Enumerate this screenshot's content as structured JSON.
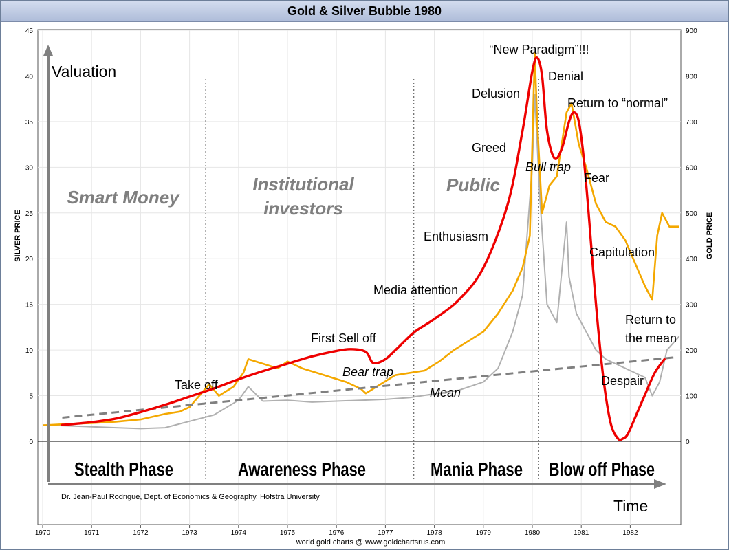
{
  "chart_data": {
    "type": "line",
    "title": "Gold & Silver Bubble 1980",
    "source": "world gold charts @ www.goldchartsrus.com",
    "credit": "Dr. Jean-Paul Rodrigue, Dept. of Economics & Geography, Hofstra University",
    "y_left_label": "SILVER PRICE",
    "y_right_label": "GOLD PRICE",
    "y_left_ticks": [
      "0",
      "5",
      "10",
      "15",
      "20",
      "25",
      "30",
      "35",
      "40",
      "45"
    ],
    "y_right_ticks": [
      "0",
      "100",
      "200",
      "300",
      "400",
      "500",
      "600",
      "700",
      "800",
      "900"
    ],
    "x_ticks": [
      "1970",
      "1971",
      "1972",
      "1973",
      "1974",
      "1975",
      "1976",
      "1977",
      "1978",
      "1979",
      "1980",
      "1981",
      "1982"
    ],
    "y_left_range": [
      0,
      45
    ],
    "y_right_range": [
      0,
      900
    ],
    "x_range": [
      1970,
      1983
    ],
    "axis_valuation": "Valuation",
    "axis_time": "Time",
    "phases": [
      "Stealth Phase",
      "Awareness Phase",
      "Mania Phase",
      "Blow off Phase"
    ],
    "investors": [
      "Smart Money",
      "Institutional investors",
      "Public"
    ],
    "annotations": [
      "“New Paradigm”!!!",
      "Denial",
      "Delusion",
      "Return to “normal”",
      "Greed",
      "Bull trap",
      "Fear",
      "Enthusiasm",
      "Capitulation",
      "Media attention",
      "First Sell off",
      "Bear trap",
      "Take off",
      "Mean",
      "Return to",
      "the mean",
      "Despair"
    ],
    "gold_series": {
      "name": "Gold",
      "color": "#f4a800",
      "x": [
        1970.0,
        1970.5,
        1971.0,
        1971.5,
        1972.0,
        1972.5,
        1972.8,
        1973.0,
        1973.2,
        1973.4,
        1973.6,
        1973.9,
        1974.1,
        1974.2,
        1974.5,
        1974.8,
        1975.0,
        1975.3,
        1975.6,
        1975.9,
        1976.2,
        1976.5,
        1976.6,
        1976.9,
        1977.2,
        1977.5,
        1977.8,
        1978.1,
        1978.4,
        1978.7,
        1979.0,
        1979.3,
        1979.6,
        1979.8,
        1979.95,
        1980.05,
        1980.1,
        1980.2,
        1980.35,
        1980.5,
        1980.7,
        1980.8,
        1980.95,
        1981.1,
        1981.3,
        1981.5,
        1981.7,
        1981.9,
        1982.1,
        1982.3,
        1982.45,
        1982.55,
        1982.65,
        1982.8,
        1983.0
      ],
      "y": [
        35,
        38,
        40,
        43,
        48,
        60,
        65,
        75,
        100,
        125,
        100,
        120,
        150,
        180,
        170,
        160,
        175,
        160,
        150,
        140,
        130,
        115,
        105,
        125,
        145,
        150,
        155,
        175,
        200,
        220,
        240,
        280,
        330,
        380,
        450,
        850,
        700,
        500,
        560,
        580,
        720,
        740,
        650,
        600,
        520,
        480,
        470,
        440,
        390,
        340,
        310,
        450,
        500,
        470,
        470
      ]
    },
    "silver_series": {
      "name": "Silver",
      "color": "#b0b0b0",
      "x": [
        1970.0,
        1970.5,
        1971.0,
        1971.5,
        1972.0,
        1972.5,
        1973.0,
        1973.5,
        1974.0,
        1974.2,
        1974.5,
        1975.0,
        1975.5,
        1976.0,
        1976.5,
        1977.0,
        1977.5,
        1978.0,
        1978.5,
        1979.0,
        1979.3,
        1979.6,
        1979.8,
        1980.0,
        1980.05,
        1980.15,
        1980.3,
        1980.5,
        1980.7,
        1980.75,
        1980.9,
        1981.1,
        1981.3,
        1981.5,
        1981.7,
        1981.9,
        1982.1,
        1982.3,
        1982.45,
        1982.6,
        1982.75,
        1983.0
      ],
      "y": [
        1.8,
        1.7,
        1.6,
        1.5,
        1.4,
        1.5,
        2.2,
        2.9,
        4.5,
        6.0,
        4.4,
        4.5,
        4.3,
        4.4,
        4.5,
        4.6,
        4.8,
        5.2,
        5.6,
        6.5,
        8.0,
        12.0,
        16.0,
        30.0,
        38.0,
        27.0,
        15.0,
        13.0,
        24.0,
        18.0,
        14.0,
        12.0,
        10.0,
        9.0,
        8.5,
        8.0,
        7.5,
        7.0,
        5.0,
        6.5,
        10.0,
        11.5
      ]
    },
    "bubble_curve": {
      "x": [
        1970.4,
        1971.0,
        1971.5,
        1972.0,
        1972.5,
        1973.0,
        1973.5,
        1974.0,
        1974.5,
        1975.0,
        1975.5,
        1976.0,
        1976.3,
        1976.6,
        1976.75,
        1977.0,
        1977.3,
        1977.6,
        1978.0,
        1978.5,
        1979.0,
        1979.5,
        1979.8,
        1980.0,
        1980.1,
        1980.2,
        1980.3,
        1980.45,
        1980.6,
        1980.75,
        1980.85,
        1980.95,
        1981.05,
        1981.15,
        1981.3,
        1981.45,
        1981.6,
        1981.75,
        1981.85,
        1981.95,
        1982.1,
        1982.3,
        1982.5,
        1982.7
      ],
      "y": [
        1.8,
        2.1,
        2.5,
        3.2,
        4.0,
        4.9,
        5.8,
        6.8,
        7.7,
        8.5,
        9.3,
        9.9,
        10.1,
        9.8,
        8.6,
        9.0,
        10.5,
        12.0,
        13.4,
        15.5,
        19.0,
        26.0,
        34.0,
        40.5,
        42.0,
        40.0,
        34.0,
        31.0,
        32.0,
        35.0,
        36.0,
        35.0,
        31.0,
        25.0,
        15.0,
        7.0,
        2.0,
        0.3,
        0.3,
        0.8,
        2.6,
        5.1,
        7.5,
        9.0
      ]
    },
    "mean_line": {
      "x": [
        1970.4,
        1982.9
      ],
      "y": [
        2.6,
        9.2
      ]
    }
  }
}
